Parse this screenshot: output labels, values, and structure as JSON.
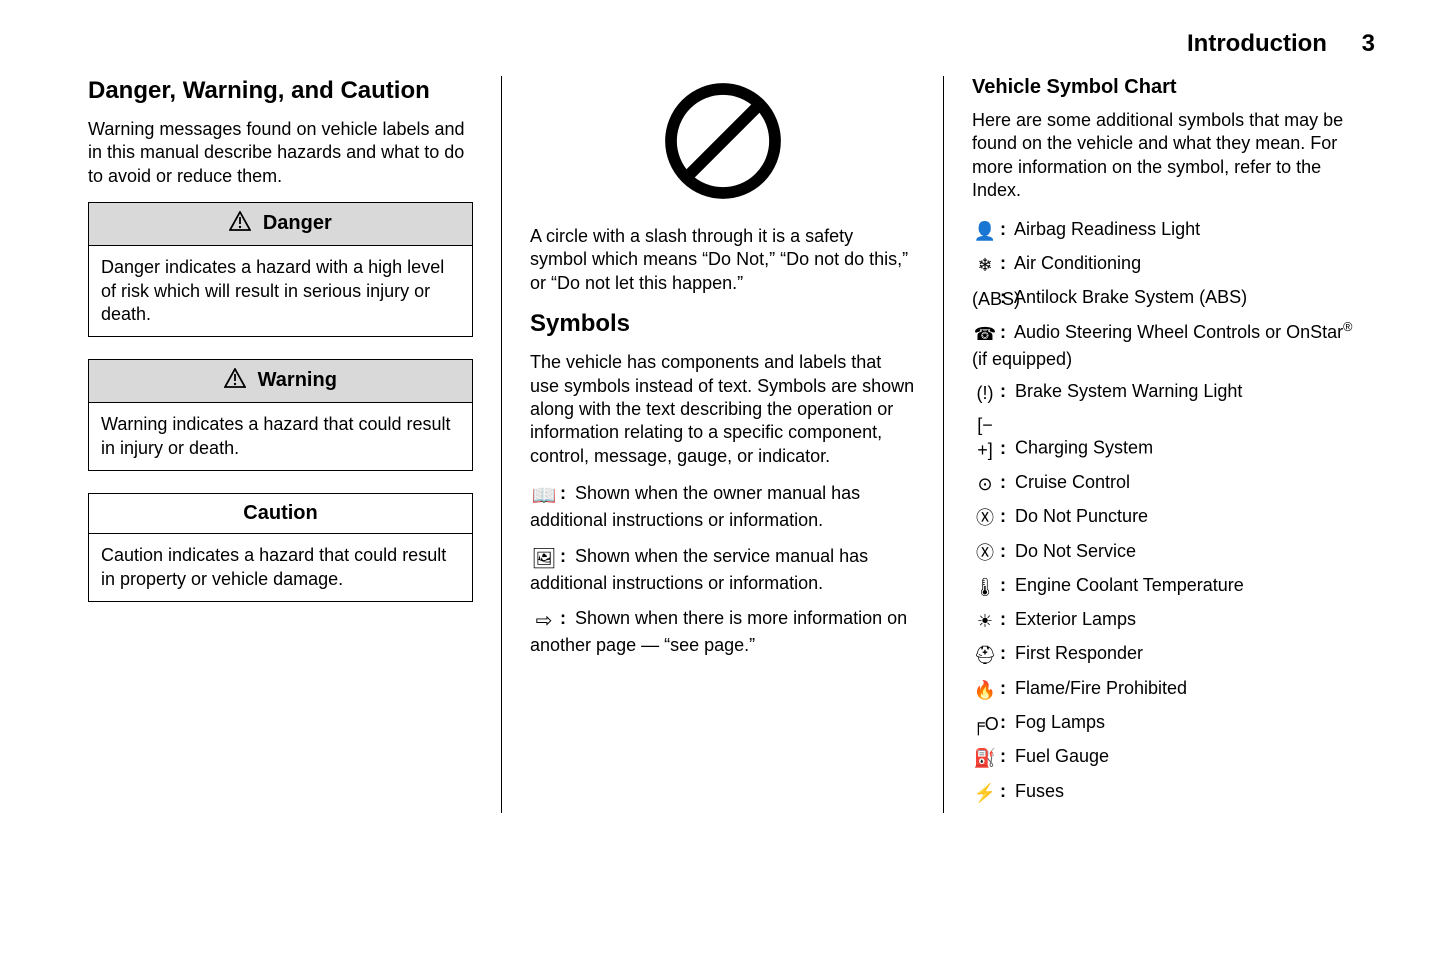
{
  "header": {
    "title": "Introduction",
    "page_number": "3"
  },
  "col1": {
    "heading": "Danger, Warning, and Caution",
    "intro": "Warning messages found on vehicle labels and in this manual describe hazards and what to do to avoid or reduce them.",
    "danger": {
      "title": "Danger",
      "body": "Danger indicates a hazard with a high level of risk which will result in serious injury or death."
    },
    "warning": {
      "title": "Warning",
      "body": "Warning indicates a hazard that could result in injury or death."
    },
    "caution": {
      "title": "Caution",
      "body": "Caution indicates a hazard that could result in property or vehicle damage."
    }
  },
  "col2": {
    "do_not_text": "A circle with a slash through it is a safety symbol which means “Do Not,” “Do not do this,” or “Do not let this happen.”",
    "symbols_heading": "Symbols",
    "symbols_intro": "The vehicle has components and labels that use symbols instead of text. Symbols are shown along with the text describing the operation or information relating to a specific component, control, message, gauge, or indicator.",
    "items": [
      {
        "glyph": "📖",
        "text": "Shown when the owner manual has additional instructions or information."
      },
      {
        "glyph": "🖼",
        "text": "Shown when the service manual has additional instructions or information."
      },
      {
        "glyph": "⇨",
        "text": "Shown when there is more information on another page — “see page.”"
      }
    ]
  },
  "col3": {
    "heading": "Vehicle Symbol Chart",
    "intro": "Here are some additional symbols that may be found on the vehicle and what they mean. For more information on the symbol, refer to the Index.",
    "items": [
      {
        "glyph": "👤",
        "text": "Airbag Readiness Light"
      },
      {
        "glyph": "❄",
        "text": "Air Conditioning"
      },
      {
        "glyph": "(ABS)",
        "text": "Antilock Brake System (ABS)"
      },
      {
        "glyph": "☎",
        "text": "Audio Steering Wheel Controls or OnStar",
        "suffix_sup": "®",
        "suffix": " (if equipped)"
      },
      {
        "glyph": "(!)",
        "text": "Brake System Warning Light"
      },
      {
        "glyph": "[− +]",
        "text": "Charging System"
      },
      {
        "glyph": "⊙",
        "text": "Cruise Control"
      },
      {
        "glyph": "Ⓧ",
        "text": "Do Not Puncture"
      },
      {
        "glyph": "Ⓧ",
        "text": "Do Not Service"
      },
      {
        "glyph": "🌡",
        "text": "Engine Coolant Temperature"
      },
      {
        "glyph": "☀",
        "text": "Exterior Lamps"
      },
      {
        "glyph": "⛑",
        "text": "First Responder"
      },
      {
        "glyph": "🔥",
        "text": "Flame/Fire Prohibited"
      },
      {
        "glyph": "╒O",
        "text": "Fog Lamps"
      },
      {
        "glyph": "⛽",
        "text": "Fuel Gauge"
      },
      {
        "glyph": "⚡",
        "text": "Fuses"
      }
    ]
  },
  "style": {
    "callout_bg": "#d9d9d9",
    "border_color": "#000000",
    "font_family": "Arial, Helvetica, sans-serif",
    "base_fontsize_pt": 14,
    "heading_fontsize_pt": 18
  }
}
